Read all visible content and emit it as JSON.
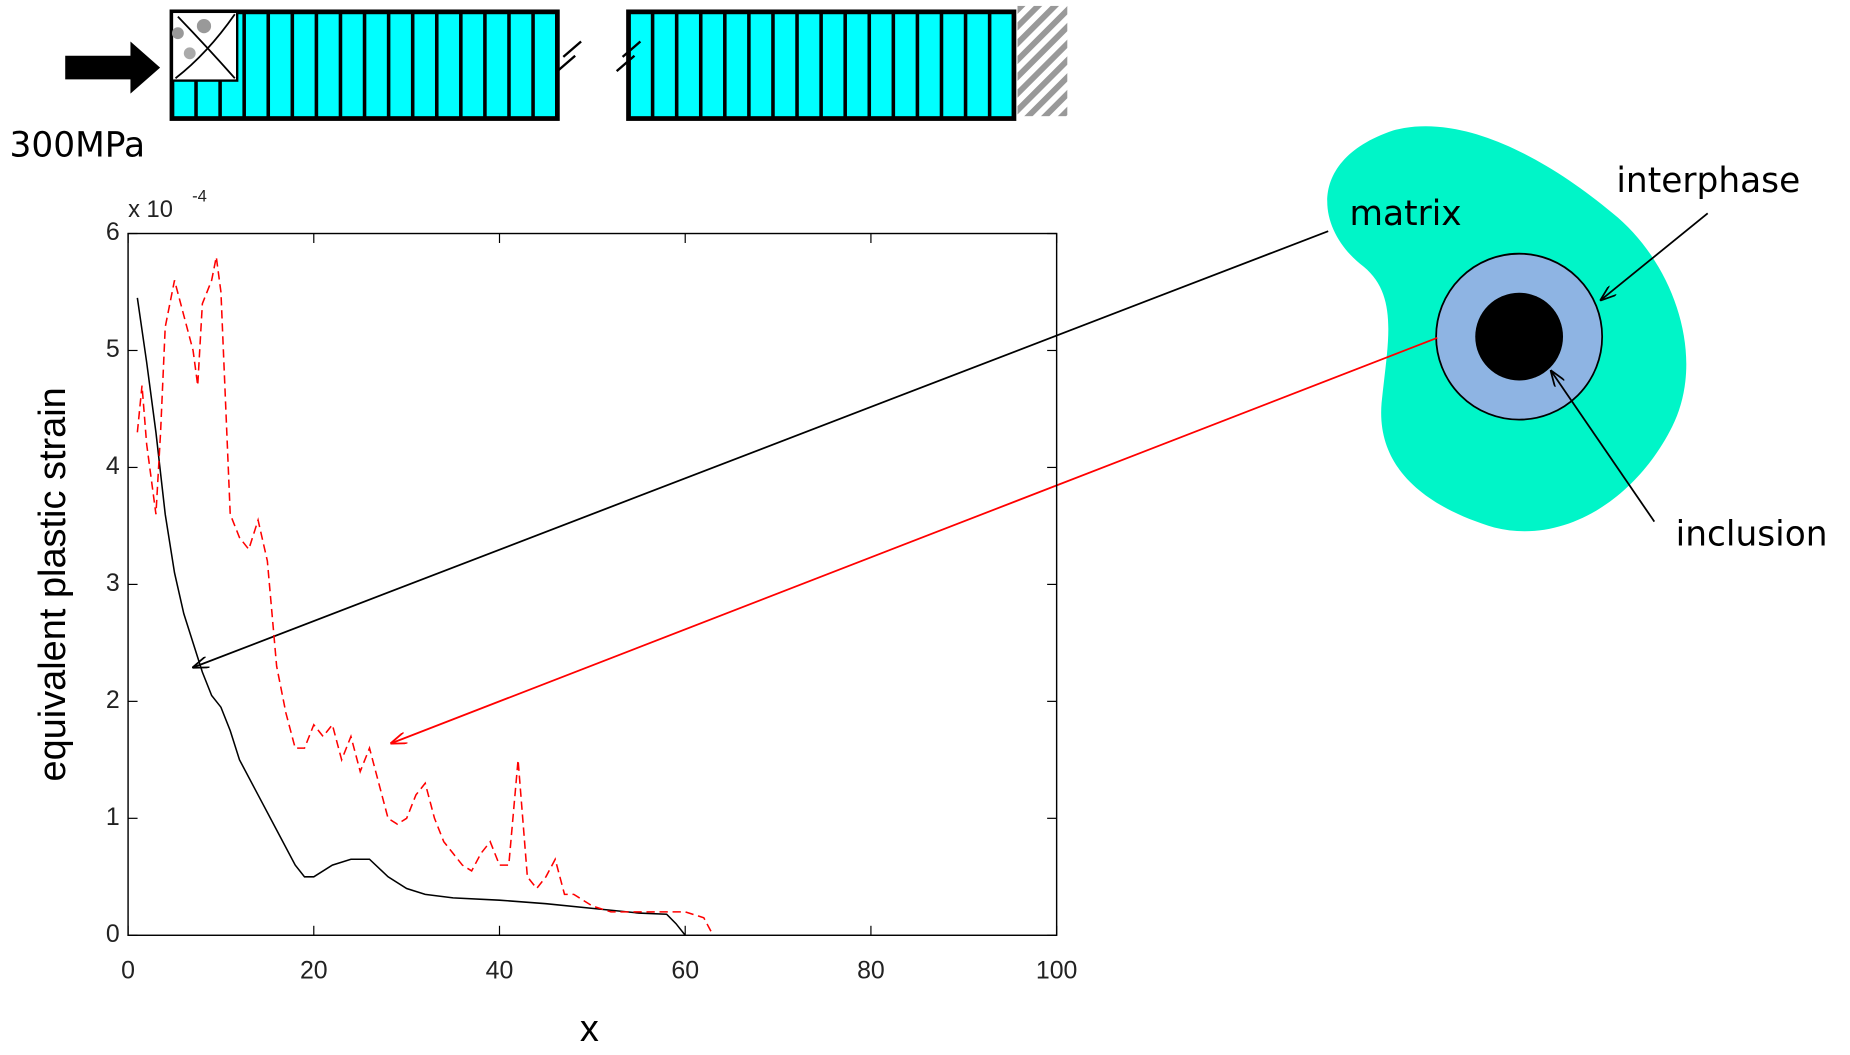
{
  "chart_data": {
    "type": "line",
    "xlabel": "x",
    "ylabel": "equivalent plastic strain",
    "y_multiplier": "x 10",
    "y_exponent": "-4",
    "load_label": "300MPa",
    "annotations": [
      "matrix",
      "interphase",
      "inclusion"
    ],
    "xlim": [
      0,
      100
    ],
    "xticks": [
      0,
      20,
      40,
      60,
      80,
      100
    ],
    "ylim": [
      0,
      6
    ],
    "yticks": [
      0,
      1,
      2,
      3,
      4,
      5,
      6
    ],
    "grid": false,
    "series": [
      {
        "color": "#000000",
        "dash": false,
        "x": [
          1,
          2,
          3,
          4,
          5,
          6,
          7,
          8,
          9,
          10,
          11,
          12,
          14,
          16,
          18,
          19,
          20,
          22,
          24,
          26,
          28,
          30,
          32,
          35,
          40,
          45,
          50,
          55,
          58,
          59,
          60
        ],
        "values": [
          5.45,
          4.9,
          4.3,
          3.6,
          3.1,
          2.75,
          2.5,
          2.25,
          2.05,
          1.95,
          1.75,
          1.5,
          1.2,
          0.9,
          0.6,
          0.5,
          0.5,
          0.6,
          0.65,
          0.65,
          0.5,
          0.4,
          0.35,
          0.32,
          0.3,
          0.27,
          0.23,
          0.19,
          0.18,
          0.1,
          0
        ]
      },
      {
        "color": "#ff0000",
        "dash": true,
        "x": [
          1,
          1.5,
          2,
          3,
          3.5,
          4,
          5,
          6,
          7,
          7.5,
          8,
          9,
          9.5,
          10,
          11,
          12,
          13,
          14,
          15,
          16,
          17,
          18,
          19,
          20,
          21,
          22,
          23,
          24,
          25,
          26,
          27,
          28,
          29,
          30,
          31,
          32,
          33,
          34,
          35,
          36,
          37,
          38,
          39,
          40,
          41,
          42,
          43,
          44,
          45,
          46,
          47,
          48,
          50,
          52,
          55,
          58,
          60,
          62,
          63
        ],
        "values": [
          4.3,
          4.7,
          4.2,
          3.6,
          4.3,
          5.2,
          5.6,
          5.3,
          5.0,
          4.7,
          5.4,
          5.6,
          5.8,
          5.5,
          3.6,
          3.4,
          3.3,
          3.55,
          3.2,
          2.3,
          1.9,
          1.6,
          1.6,
          1.8,
          1.7,
          1.8,
          1.5,
          1.7,
          1.4,
          1.6,
          1.3,
          1.0,
          0.95,
          1.0,
          1.2,
          1.3,
          1.0,
          0.8,
          0.7,
          0.6,
          0.55,
          0.7,
          0.8,
          0.6,
          0.6,
          1.5,
          0.5,
          0.4,
          0.5,
          0.65,
          0.35,
          0.35,
          0.25,
          0.2,
          0.2,
          0.2,
          0.2,
          0.15,
          0
        ]
      }
    ]
  }
}
